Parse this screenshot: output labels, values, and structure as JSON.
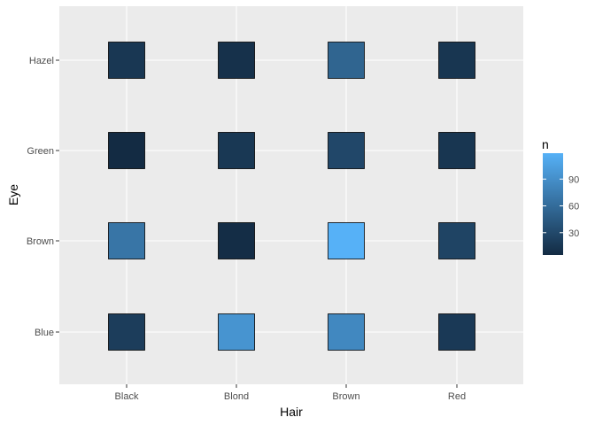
{
  "chart_data": {
    "type": "heatmap",
    "title": "",
    "xlabel": "Hair",
    "ylabel": "Eye",
    "x_categories": [
      "Black",
      "Blond",
      "Brown",
      "Red"
    ],
    "y_categories": [
      "Blue",
      "Brown",
      "Green",
      "Hazel"
    ],
    "cells": [
      {
        "hair": "Black",
        "eye": "Blue",
        "n": 20
      },
      {
        "hair": "Black",
        "eye": "Brown",
        "n": 68
      },
      {
        "hair": "Black",
        "eye": "Green",
        "n": 5
      },
      {
        "hair": "Black",
        "eye": "Hazel",
        "n": 15
      },
      {
        "hair": "Blond",
        "eye": "Blue",
        "n": 94
      },
      {
        "hair": "Blond",
        "eye": "Brown",
        "n": 7
      },
      {
        "hair": "Blond",
        "eye": "Green",
        "n": 16
      },
      {
        "hair": "Blond",
        "eye": "Hazel",
        "n": 10
      },
      {
        "hair": "Brown",
        "eye": "Blue",
        "n": 84
      },
      {
        "hair": "Brown",
        "eye": "Brown",
        "n": 119
      },
      {
        "hair": "Brown",
        "eye": "Green",
        "n": 29
      },
      {
        "hair": "Brown",
        "eye": "Hazel",
        "n": 54
      },
      {
        "hair": "Red",
        "eye": "Blue",
        "n": 17
      },
      {
        "hair": "Red",
        "eye": "Brown",
        "n": 26
      },
      {
        "hair": "Red",
        "eye": "Green",
        "n": 14
      },
      {
        "hair": "Red",
        "eye": "Hazel",
        "n": 14
      }
    ],
    "legend": {
      "title": "n",
      "breaks": [
        30,
        60,
        90
      ],
      "range": [
        5,
        119
      ],
      "low_color": "#132B43",
      "high_color": "#56B1F7",
      "placement": "right"
    },
    "grid": true,
    "panel_background": "#EBEBEB",
    "grid_color": "#FFFFFF",
    "tile_border_color": "#000000"
  }
}
